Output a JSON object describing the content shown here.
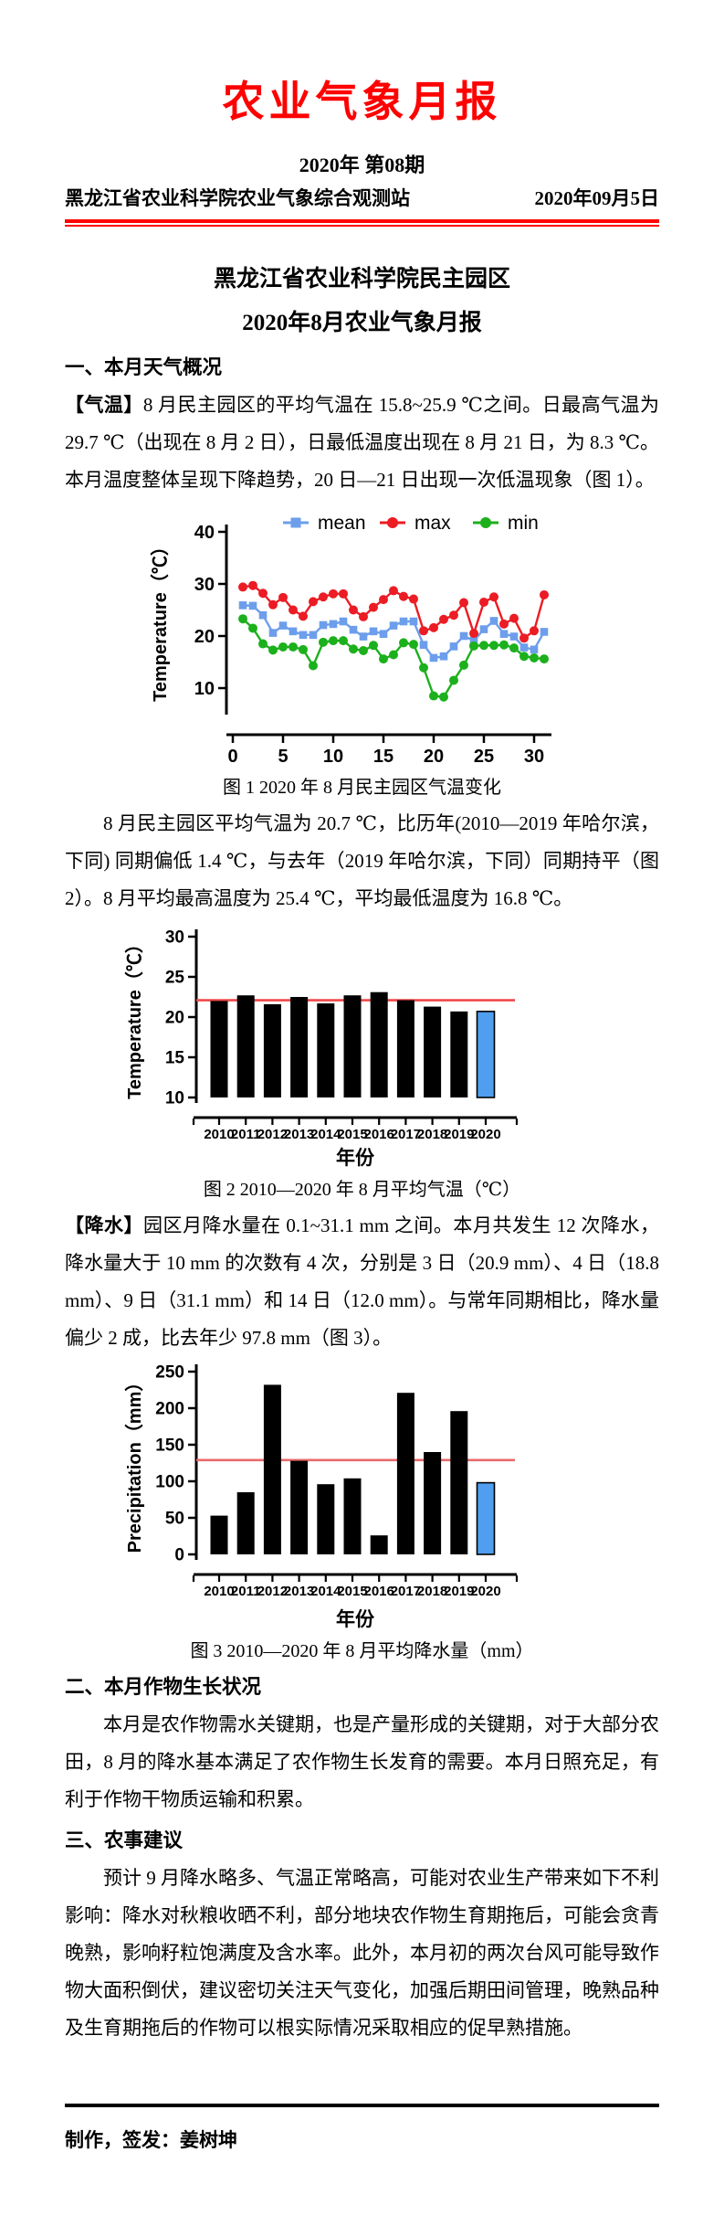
{
  "masthead": {
    "title": "农业气象月报",
    "issue": "2020年 第08期",
    "station": "黑龙江省农业科学院农业气象综合观测站",
    "date": "2020年09月5日"
  },
  "doc_title": {
    "line1": "黑龙江省农业科学院民主园区",
    "line2": "2020年8月农业气象月报"
  },
  "sections": {
    "weather": {
      "heading": "一、本月天气概况",
      "p1_label": "【气温】",
      "p1_text": "8 月民主园区的平均气温在 15.8~25.9 ℃之间。日最高气温为 29.7 ℃（出现在 8 月 2 日），日最低温度出现在 8 月 21 日，为 8.3 ℃。本月温度整体呈现下降趋势，20 日—21 日出现一次低温现象（图 1）。",
      "p2": "8 月民主园区平均气温为 20.7 ℃，比历年(2010—2019 年哈尔滨，下同) 同期偏低 1.4 ℃，与去年（2019 年哈尔滨，下同）同期持平（图 2）。8 月平均最高温度为 25.4 ℃，平均最低温度为 16.8 ℃。",
      "p3_label": "【降水】",
      "p3_text": "园区月降水量在 0.1~31.1 mm 之间。本月共发生 12 次降水，降水量大于 10 mm 的次数有 4 次，分别是 3 日（20.9 mm）、4 日（18.8 mm）、9 日（31.1 mm）和 14 日（12.0 mm）。与常年同期相比，降水量偏少 2 成，比去年少 97.8 mm（图 3）。"
    },
    "crops": {
      "heading": "二、本月作物生长状况",
      "p1": "本月是农作物需水关键期，也是产量形成的关键期，对于大部分农田，8 月的降水基本满足了农作物生长发育的需要。本月日照充足，有利于作物干物质运输和积累。"
    },
    "advice": {
      "heading": "三、农事建议",
      "p1": "预计 9 月降水略多、气温正常略高，可能对农业生产带来如下不利影响：降水对秋粮收晒不利，部分地块农作物生育期拖后，可能会贪青晚熟，影响籽粒饱满度及含水率。此外，本月初的两次台风可能导致作物大面积倒伏，建议密切关注天气变化，加强后期田间管理，晚熟品种及生育期拖后的作物可以根实际情况采取相应的促早熟措施。"
    }
  },
  "figures": {
    "fig1_caption": "图 1 2020 年 8 月民主园区气温变化",
    "fig2_caption": "图 2 2010—2020 年 8 月平均气温（℃）",
    "fig3_caption": "图 3 2010—2020 年 8 月平均降水量（mm）"
  },
  "footer": {
    "credit": "制作，签发：姜树坤"
  },
  "chart_data": [
    {
      "type": "line",
      "title": "图 1 2020 年 8 月民主园区气温变化",
      "xlabel": "",
      "ylabel": "Temperature（℃）",
      "ylim": [
        10,
        40
      ],
      "yticks": [
        10,
        20,
        30,
        40
      ],
      "xticks": [
        0,
        5,
        10,
        15,
        20,
        25,
        30
      ],
      "x": [
        1,
        2,
        3,
        4,
        5,
        6,
        7,
        8,
        9,
        10,
        11,
        12,
        13,
        14,
        15,
        16,
        17,
        18,
        19,
        20,
        21,
        22,
        23,
        24,
        25,
        26,
        27,
        28,
        29,
        30,
        31
      ],
      "legend_position": "top",
      "grid": false,
      "series": [
        {
          "name": "mean",
          "color": "#6D9EEB",
          "marker": "square",
          "values": [
            25.9,
            25.8,
            24.0,
            20.6,
            22.0,
            20.9,
            20.2,
            20.2,
            22.1,
            22.3,
            22.8,
            21.2,
            19.9,
            20.9,
            20.4,
            22.0,
            22.8,
            22.8,
            18.3,
            15.8,
            16.1,
            18.0,
            20.0,
            19.1,
            21.3,
            22.9,
            20.4,
            19.9,
            17.8,
            17.4,
            20.8
          ]
        },
        {
          "name": "max",
          "color": "#EB1C24",
          "marker": "circle",
          "values": [
            29.4,
            29.7,
            28.2,
            26.0,
            27.4,
            25.0,
            23.8,
            26.6,
            27.5,
            28.1,
            28.1,
            25.0,
            23.7,
            25.5,
            27.0,
            28.7,
            27.6,
            27.1,
            21.0,
            21.6,
            23.2,
            24.0,
            26.4,
            20.5,
            26.5,
            27.5,
            22.3,
            23.4,
            19.6,
            21.0,
            27.9
          ]
        },
        {
          "name": "min",
          "color": "#1CB01C",
          "marker": "circle",
          "values": [
            23.3,
            21.5,
            18.5,
            17.3,
            17.9,
            17.9,
            17.4,
            14.3,
            18.8,
            19.1,
            19.1,
            17.5,
            17.2,
            18.2,
            15.6,
            16.4,
            18.7,
            18.4,
            13.9,
            8.5,
            8.3,
            11.5,
            14.4,
            18.1,
            18.2,
            18.2,
            18.3,
            17.7,
            16.1,
            15.8,
            15.6
          ]
        }
      ]
    },
    {
      "type": "bar",
      "title": "图 2 2010—2020 年 8 月平均气温（℃）",
      "xlabel": "年份",
      "ylabel": "Temperature（℃）",
      "ylim": [
        10,
        30
      ],
      "yticks": [
        10,
        15,
        20,
        25,
        30
      ],
      "categories": [
        2010,
        2011,
        2012,
        2013,
        2014,
        2015,
        2016,
        2017,
        2018,
        2019,
        2020
      ],
      "values": [
        22.0,
        22.7,
        21.6,
        22.5,
        21.7,
        22.7,
        23.1,
        22.1,
        21.3,
        20.7,
        20.7
      ],
      "bar_color": "#000000",
      "highlight_index": 10,
      "highlight_color": "#4F9EF0",
      "ref_line": 22.1,
      "ref_color": "#F04848",
      "grid": false
    },
    {
      "type": "bar",
      "title": "图 3 2010—2020 年 8 月平均降水量（mm）",
      "xlabel": "年份",
      "ylabel": "Precipitation（mm）",
      "ylim": [
        0,
        250
      ],
      "yticks": [
        0,
        50,
        100,
        150,
        200,
        250
      ],
      "categories": [
        2010,
        2011,
        2012,
        2013,
        2014,
        2015,
        2016,
        2017,
        2018,
        2019,
        2020
      ],
      "values": [
        53,
        85,
        232,
        128,
        96,
        104,
        26,
        221,
        140,
        196,
        98
      ],
      "bar_color": "#000000",
      "highlight_index": 10,
      "highlight_color": "#4F9EF0",
      "ref_line": 129,
      "ref_color": "#E86A6A",
      "grid": false
    }
  ]
}
